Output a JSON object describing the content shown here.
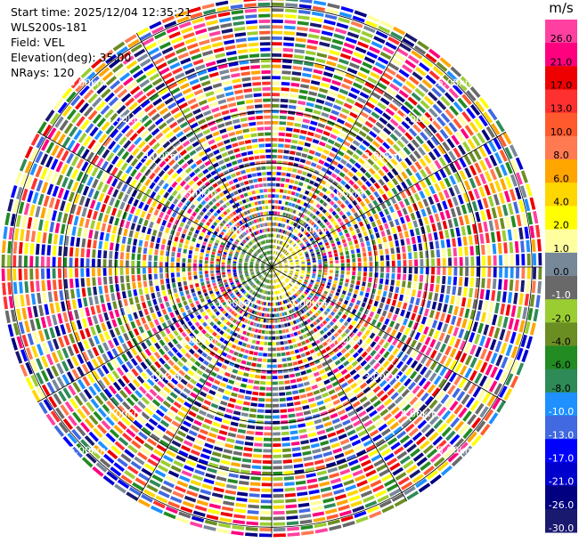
{
  "header": {
    "start_time": "Start time: 2025/12/04 12:35:21",
    "instrument": "WLS200s-181",
    "field": "Field: VEL",
    "elevation": "Elevation(deg): 35.00",
    "nrays": "NRays: 120"
  },
  "chart_data": {
    "type": "heatmap",
    "projection": "polar-ppi",
    "field": "VEL",
    "nrays": 120,
    "colorbar": {
      "unit": "m/s",
      "bins": [
        {
          "label": "26.0",
          "color": "#ff40a0"
        },
        {
          "label": "21.0",
          "color": "#ff007f"
        },
        {
          "label": "17.0",
          "color": "#ee0000"
        },
        {
          "label": "13.0",
          "color": "#ff3030"
        },
        {
          "label": "10.0",
          "color": "#ff5a2e"
        },
        {
          "label": "8.0",
          "color": "#ff7a50"
        },
        {
          "label": "6.0",
          "color": "#ffa500"
        },
        {
          "label": "4.0",
          "color": "#ffd700"
        },
        {
          "label": "2.0",
          "color": "#ffff00"
        },
        {
          "label": "1.0",
          "color": "#ffffa0"
        },
        {
          "label": "0.0",
          "color": "#778899"
        },
        {
          "label": "-1.0",
          "color": "#696969"
        },
        {
          "label": "-2.0",
          "color": "#9acd32"
        },
        {
          "label": "-4.0",
          "color": "#6b8e23"
        },
        {
          "label": "-6.0",
          "color": "#228b22"
        },
        {
          "label": "-8.0",
          "color": "#2e8b57"
        },
        {
          "label": "-10.0",
          "color": "#1e90ff"
        },
        {
          "label": "-13.0",
          "color": "#4169e1"
        },
        {
          "label": "-17.0",
          "color": "#0000ff"
        },
        {
          "label": "-21.0",
          "color": "#0000cd"
        },
        {
          "label": "-26.0",
          "color": "#000080"
        },
        {
          "label": "-30.0",
          "color": "#191970"
        }
      ]
    },
    "range_rings": [
      {
        "range_km": 1.0,
        "label": "1.00km"
      },
      {
        "range_km": 2.0,
        "label": "2.00km"
      },
      {
        "range_km": 3.0,
        "label": "3.00km"
      },
      {
        "range_km": 4.0,
        "label": "4.00km"
      },
      {
        "range_km": 5.0,
        "label": "5.00km"
      }
    ],
    "max_range_km": 5.2
  }
}
